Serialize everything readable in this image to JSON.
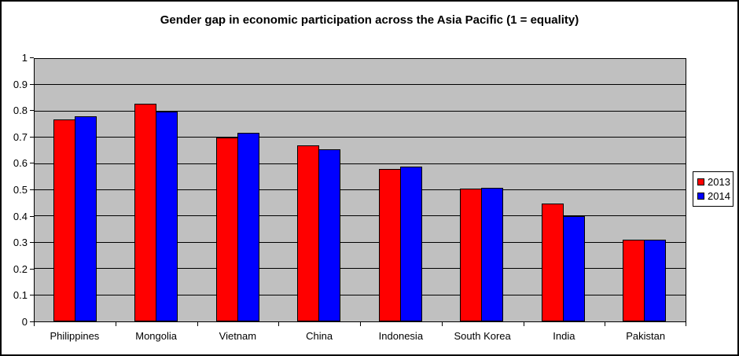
{
  "chart_data": {
    "type": "bar",
    "title": "Gender gap in economic participation across the Asia Pacific (1 = equality)",
    "categories": [
      "Philippines",
      "Mongolia",
      "Vietnam",
      "China",
      "Indonesia",
      "South Korea",
      "India",
      "Pakistan"
    ],
    "series": [
      {
        "name": "2013",
        "color": "#ff0000",
        "values": [
          0.77,
          0.83,
          0.7,
          0.67,
          0.58,
          0.505,
          0.45,
          0.31
        ]
      },
      {
        "name": "2014",
        "color": "#0000ff",
        "values": [
          0.78,
          0.8,
          0.72,
          0.655,
          0.59,
          0.51,
          0.4,
          0.31
        ]
      }
    ],
    "xlabel": "",
    "ylabel": "",
    "ylim": [
      0,
      1
    ],
    "ytick_labels": [
      "0",
      "0.1",
      "0.2",
      "0.3",
      "0.4",
      "0.5",
      "0.6",
      "0.7",
      "0.8",
      "0.9",
      "1"
    ],
    "grid": "horizontal",
    "legend_position": "right",
    "colors": {
      "plot_bg": "#c0c0c0",
      "gridline": "#000000",
      "bar_border": "#000000",
      "chart_border": "#000000",
      "background": "#ffffff"
    }
  }
}
